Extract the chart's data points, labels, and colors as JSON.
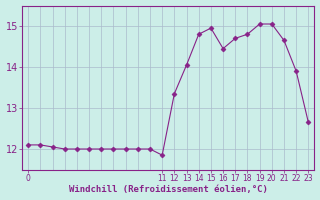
{
  "x": [
    0,
    1,
    2,
    3,
    4,
    5,
    6,
    7,
    8,
    9,
    10,
    11,
    12,
    13,
    14,
    15,
    16,
    17,
    18,
    19,
    20,
    21,
    22,
    23
  ],
  "y": [
    12.1,
    12.1,
    12.05,
    12.0,
    12.0,
    12.0,
    12.0,
    12.0,
    12.0,
    12.0,
    12.0,
    11.85,
    13.35,
    14.05,
    14.8,
    14.95,
    14.45,
    14.7,
    14.8,
    15.05,
    15.05,
    14.65,
    13.9,
    12.65
  ],
  "line_color": "#882288",
  "marker": "D",
  "marker_size": 2.5,
  "bg_color": "#cceee8",
  "grid_color": "#aabbcc",
  "xlabel": "Windchill (Refroidissement éolien,°C)",
  "xlabel_color": "#882288",
  "tick_color": "#882288",
  "axis_color": "#882288",
  "ylim": [
    11.5,
    15.5
  ],
  "xlim": [
    -0.5,
    23.5
  ],
  "yticks": [
    12,
    13,
    14,
    15
  ],
  "xticks_show": [
    0,
    11,
    12,
    13,
    14,
    15,
    16,
    17,
    18,
    19,
    20,
    21,
    22,
    23
  ],
  "xticks_grid": [
    0,
    1,
    2,
    3,
    4,
    5,
    6,
    7,
    8,
    9,
    10,
    11,
    12,
    13,
    14,
    15,
    16,
    17,
    18,
    19,
    20,
    21,
    22,
    23
  ]
}
